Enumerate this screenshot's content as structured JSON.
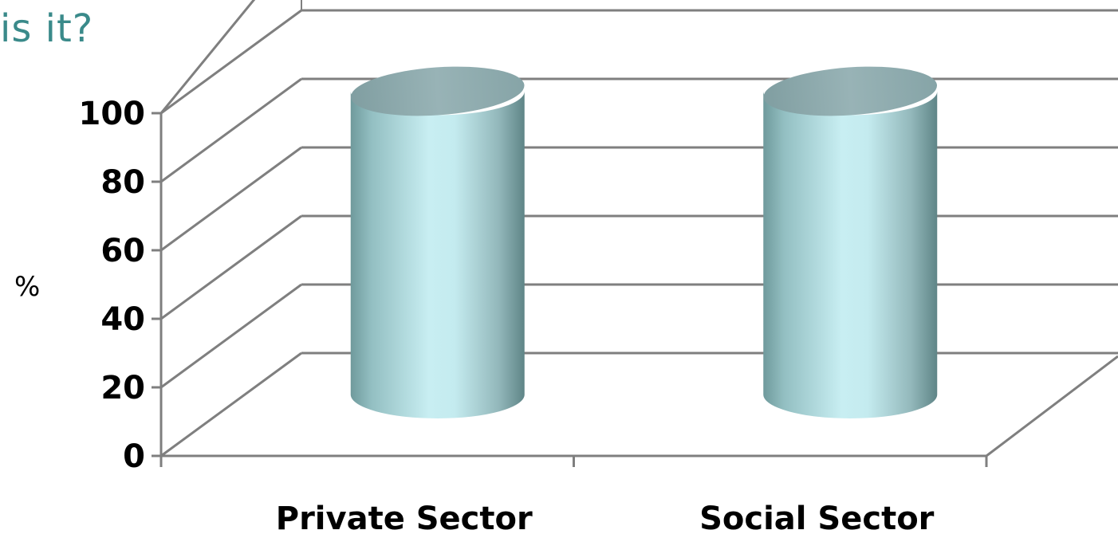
{
  "title_fragment": "is it?",
  "colors": {
    "title": "#3a8a8a",
    "grid": "#7f7f7f",
    "cylinder_light": "#c8eef2",
    "cylinder_dark": "#6f9a9c",
    "cylinder_top": "#8fa8ab"
  },
  "chart_data": {
    "type": "bar",
    "style": "3d-cylinder",
    "categories": [
      "Private Sector",
      "Social Sector"
    ],
    "values": [
      100,
      100
    ],
    "ylabel": "%",
    "xlabel": "",
    "ylim": [
      0,
      100
    ],
    "yticks": [
      "0",
      "20",
      "40",
      "60",
      "80",
      "100"
    ],
    "grid": true,
    "legend": "none"
  }
}
